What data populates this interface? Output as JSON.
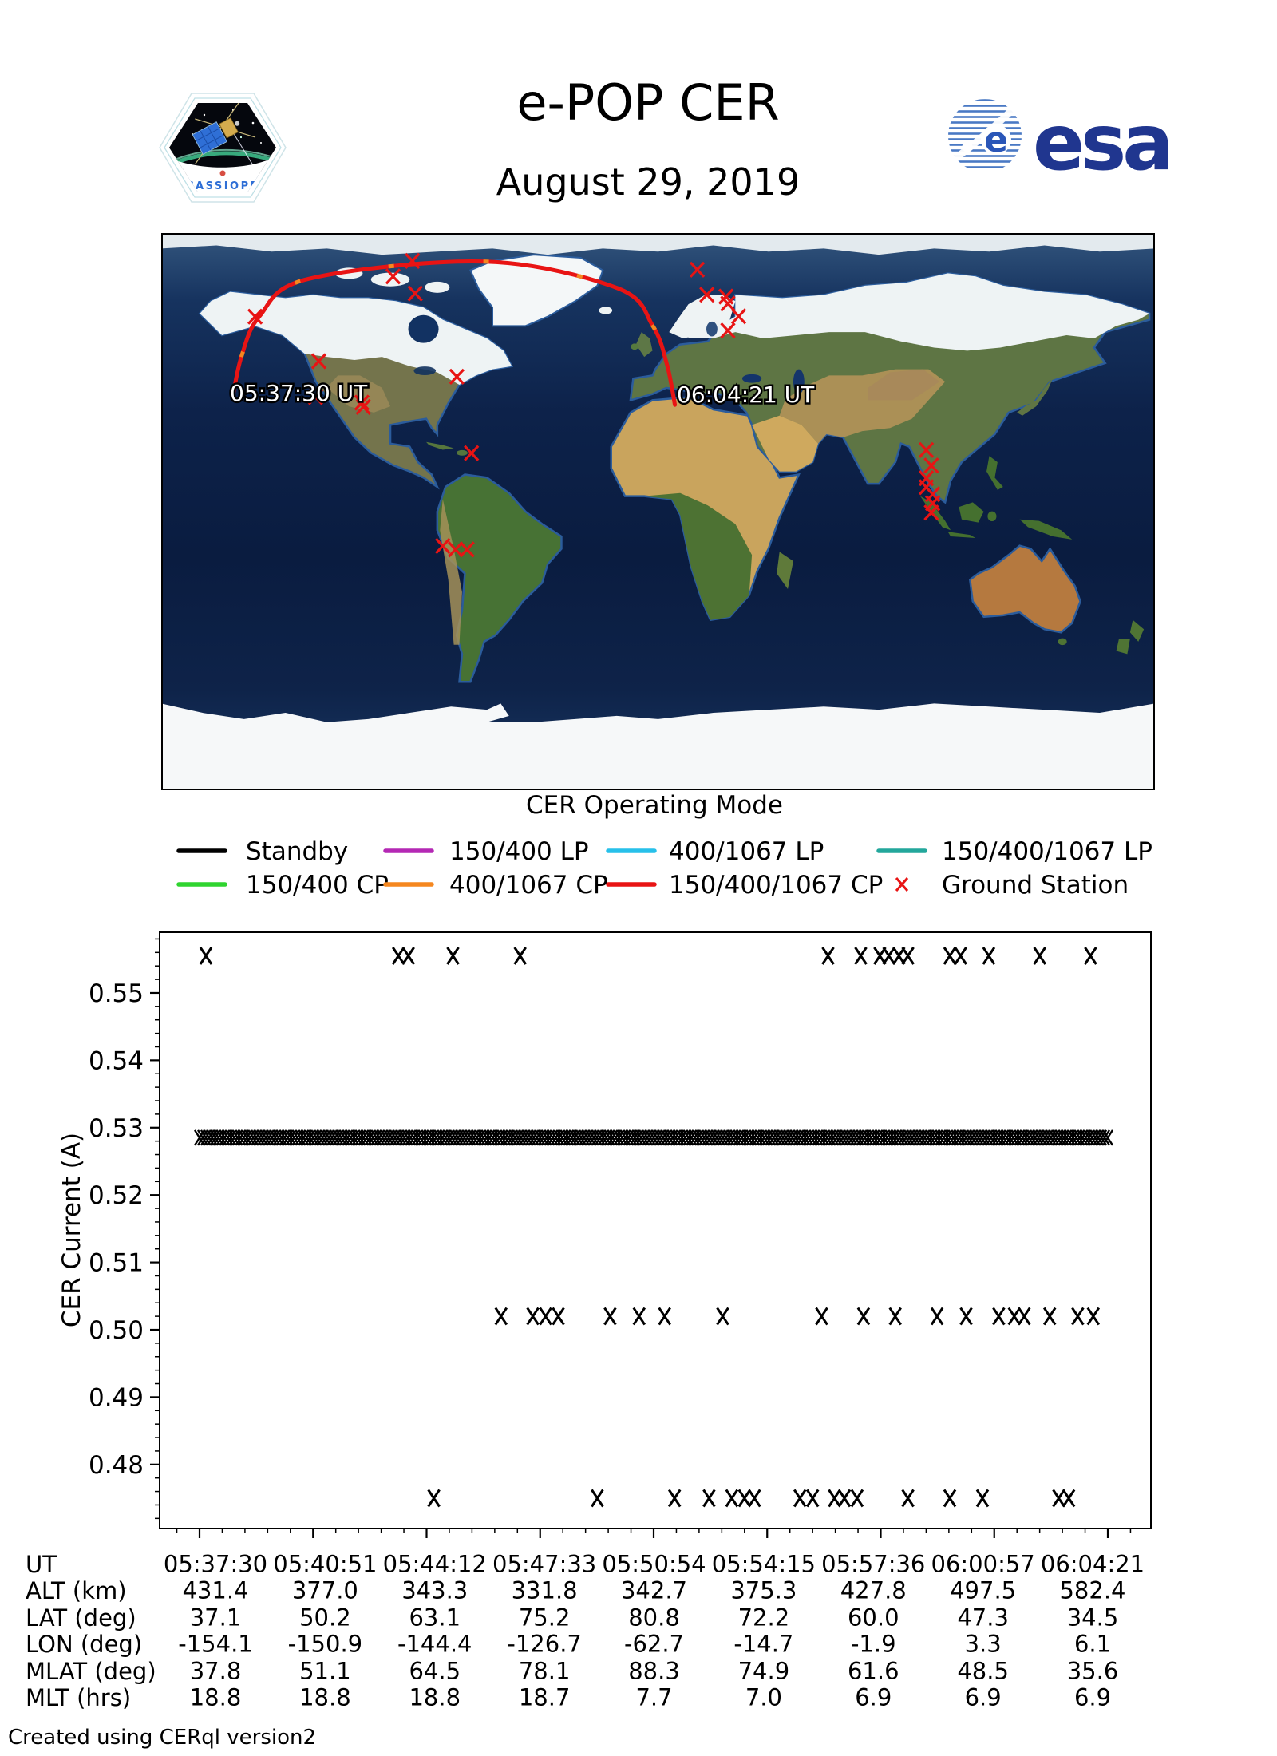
{
  "header": {
    "title": "e-POP CER",
    "date": "August 29, 2019",
    "cassiope_label": "CASSIOPE",
    "esa_label": "esa"
  },
  "map": {
    "start_label": "05:37:30 UT",
    "end_label": "06:04:21 UT",
    "track_color": "#e81414",
    "track_alt_color": "#f5871f",
    "station_color": "#e81414",
    "track_points": [
      [
        -154.1,
        37.1
      ],
      [
        -150.9,
        50.2
      ],
      [
        -144.4,
        63.1
      ],
      [
        -126.7,
        75.2
      ],
      [
        -62.7,
        80.8
      ],
      [
        -14.7,
        72.2
      ],
      [
        -1.9,
        60.0
      ],
      [
        3.3,
        47.3
      ],
      [
        6.1,
        34.5
      ]
    ],
    "ground_stations": [
      [
        -146.0,
        63.0
      ],
      [
        -96.0,
        76.0
      ],
      [
        -89.0,
        81.0
      ],
      [
        -88.0,
        70.5
      ],
      [
        -122.9,
        48.6
      ],
      [
        -124.1,
        37.0
      ],
      [
        -107.3,
        35.2
      ],
      [
        -106.8,
        33.8
      ],
      [
        -72.9,
        43.6
      ],
      [
        -67.6,
        18.9
      ],
      [
        -78.0,
        -11.1
      ],
      [
        -73.4,
        -12.2
      ],
      [
        -69.2,
        -12.2
      ],
      [
        14.2,
        78.2
      ],
      [
        17.7,
        70.1
      ],
      [
        24.6,
        69.5
      ],
      [
        25.3,
        67.2
      ],
      [
        29.2,
        63.1
      ],
      [
        25.3,
        58.5
      ],
      [
        97.2,
        19.9
      ],
      [
        99.0,
        14.9
      ],
      [
        97.2,
        10.8
      ],
      [
        97.2,
        7.9
      ],
      [
        99.5,
        5.6
      ],
      [
        99.5,
        2.7
      ],
      [
        99.0,
        -0.3
      ]
    ]
  },
  "legend": {
    "title": "CER Operating Mode",
    "items": [
      {
        "label": "Standby",
        "color": "#000000",
        "type": "line"
      },
      {
        "label": "150/400 LP",
        "color": "#b428b4",
        "type": "line"
      },
      {
        "label": "400/1067 LP",
        "color": "#27c0ea",
        "type": "line"
      },
      {
        "label": "150/400/1067 LP",
        "color": "#23a79c",
        "type": "line"
      },
      {
        "label": "150/400 CP",
        "color": "#2fd42f",
        "type": "line"
      },
      {
        "label": "400/1067 CP",
        "color": "#f5871f",
        "type": "line"
      },
      {
        "label": "150/400/1067 CP",
        "color": "#e81414",
        "type": "line"
      },
      {
        "label": "Ground Station",
        "color": "#e81414",
        "type": "x"
      }
    ]
  },
  "chart_data": {
    "type": "scatter",
    "ylabel": "CER Current (A)",
    "marker": "x",
    "marker_color": "#000000",
    "x_range": {
      "start": "05:37:30",
      "end": "06:04:21"
    },
    "x_ticks": [
      "05:37:30",
      "05:40:51",
      "05:44:12",
      "05:47:33",
      "05:50:54",
      "05:54:15",
      "05:57:36",
      "06:00:57",
      "06:04:21"
    ],
    "y_ticks": [
      "0.55",
      "0.54",
      "0.53",
      "0.52",
      "0.51",
      "0.50",
      "0.49",
      "0.48"
    ],
    "ylim": [
      0.4705,
      0.559
    ],
    "grid": false,
    "series": [
      {
        "name": "current-high",
        "y": 0.5555,
        "x_frac": [
          0.007,
          0.219,
          0.23,
          0.279,
          0.353,
          0.692,
          0.728,
          0.749,
          0.759,
          0.77,
          0.78,
          0.826,
          0.838,
          0.869,
          0.925,
          0.981
        ]
      },
      {
        "name": "current-main-band",
        "y": 0.5285,
        "band": [
          0.0,
          1.0
        ]
      },
      {
        "name": "current-mid",
        "y": 0.502,
        "x_frac": [
          0.332,
          0.367,
          0.381,
          0.395,
          0.452,
          0.484,
          0.512,
          0.576,
          0.685,
          0.731,
          0.766,
          0.812,
          0.844,
          0.88,
          0.897,
          0.908,
          0.936,
          0.967,
          0.984
        ]
      },
      {
        "name": "current-low",
        "y": 0.475,
        "x_frac": [
          0.258,
          0.438,
          0.523,
          0.561,
          0.586,
          0.6,
          0.611,
          0.661,
          0.675,
          0.699,
          0.71,
          0.724,
          0.78,
          0.826,
          0.862,
          0.946,
          0.957
        ]
      }
    ]
  },
  "table": {
    "rows": [
      {
        "label": "UT",
        "values": [
          "05:37:30",
          "05:40:51",
          "05:44:12",
          "05:47:33",
          "05:50:54",
          "05:54:15",
          "05:57:36",
          "06:00:57",
          "06:04:21"
        ]
      },
      {
        "label": "ALT (km)",
        "values": [
          "431.4",
          "377.0",
          "343.3",
          "331.8",
          "342.7",
          "375.3",
          "427.8",
          "497.5",
          "582.4"
        ]
      },
      {
        "label": "LAT (deg)",
        "values": [
          "37.1",
          "50.2",
          "63.1",
          "75.2",
          "80.8",
          "72.2",
          "60.0",
          "47.3",
          "34.5"
        ]
      },
      {
        "label": "LON (deg)",
        "values": [
          "-154.1",
          "-150.9",
          "-144.4",
          "-126.7",
          "-62.7",
          "-14.7",
          "-1.9",
          "3.3",
          "6.1"
        ]
      },
      {
        "label": "MLAT (deg)",
        "values": [
          "37.8",
          "51.1",
          "64.5",
          "78.1",
          "88.3",
          "74.9",
          "61.6",
          "48.5",
          "35.6"
        ]
      },
      {
        "label": "MLT (hrs)",
        "values": [
          "18.8",
          "18.8",
          "18.8",
          "18.7",
          "7.7",
          "7.0",
          "6.9",
          "6.9",
          "6.9"
        ]
      }
    ]
  },
  "footer": {
    "credit": "Created using CERql version2"
  }
}
